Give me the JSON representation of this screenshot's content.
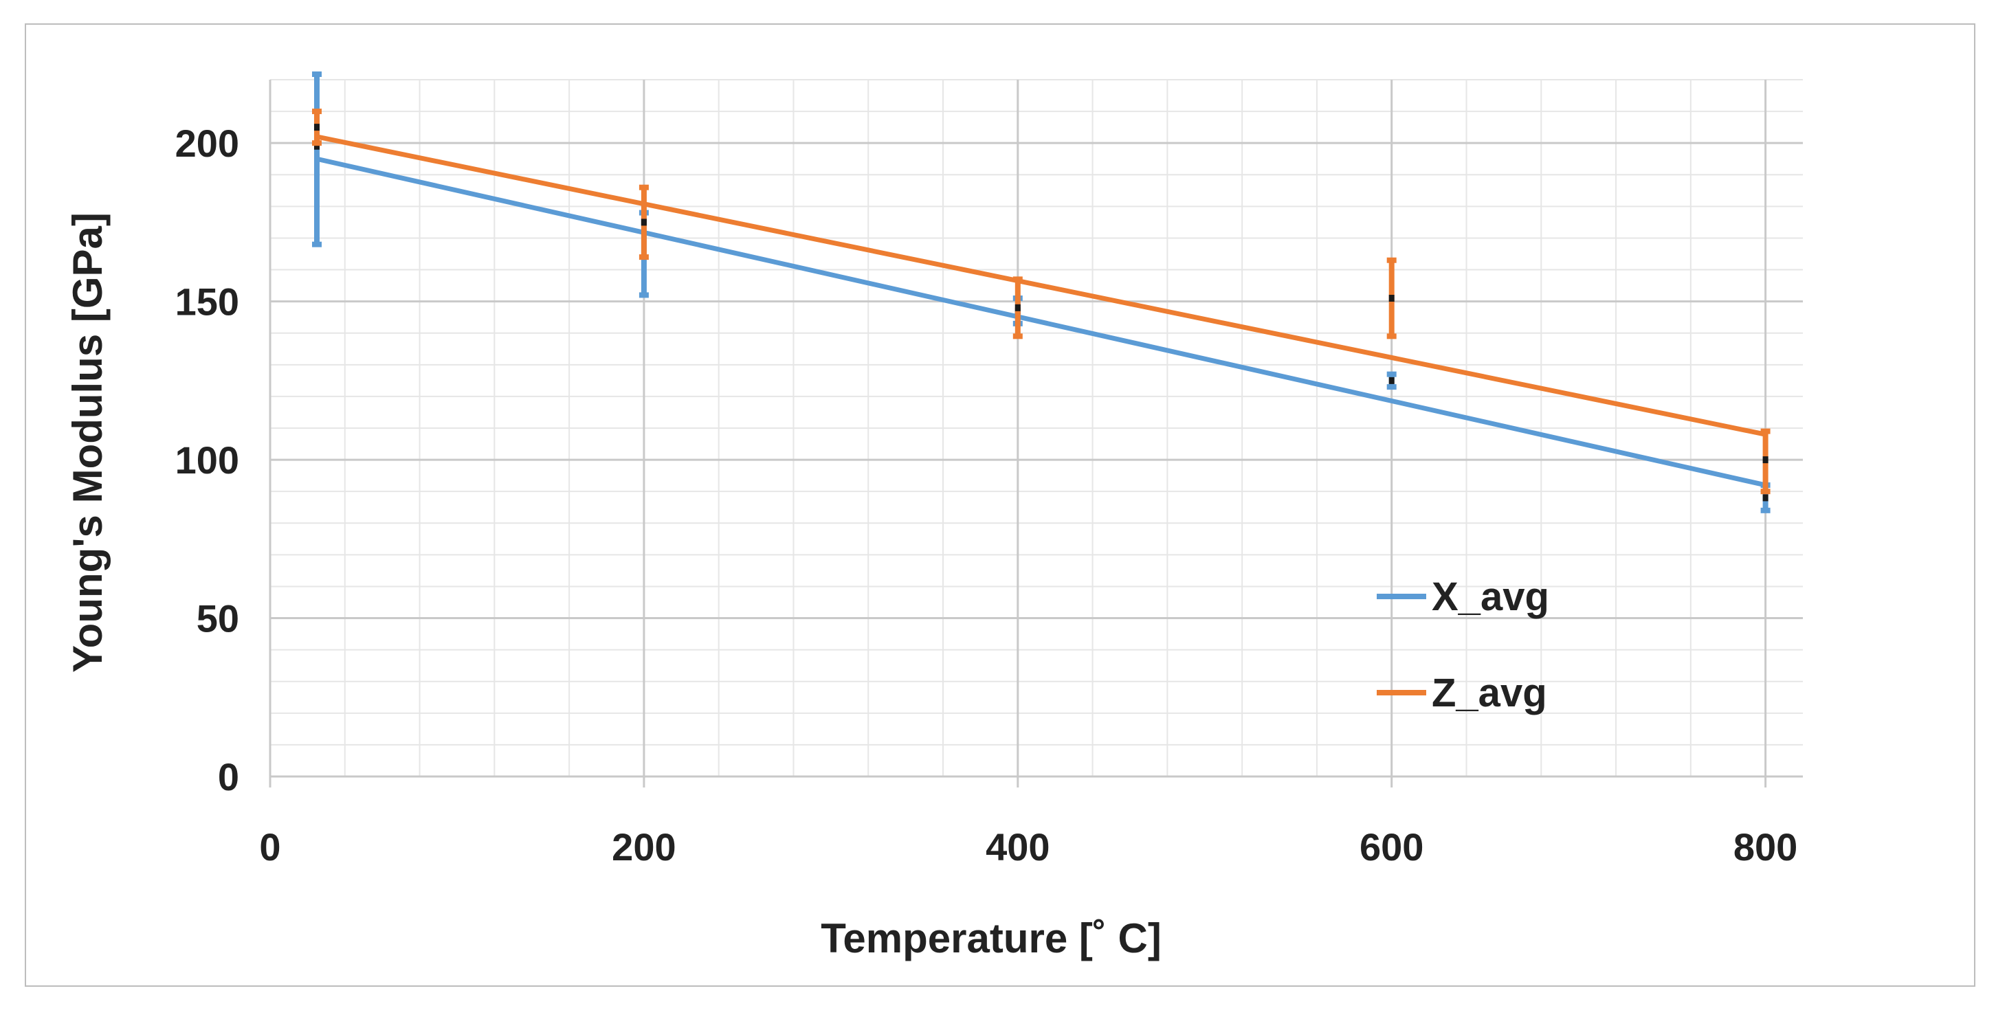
{
  "chart_data": {
    "type": "line",
    "title": "",
    "xlabel": "Temperature [˚ C]",
    "ylabel": "Young's Modulus [GPa]",
    "xlim": [
      0,
      820
    ],
    "ylim": [
      0,
      220
    ],
    "xticks": [
      0,
      200,
      400,
      600,
      800
    ],
    "yticks": [
      0,
      50,
      100,
      150,
      200
    ],
    "xtick_labels": [
      "0",
      "200",
      "400",
      "600",
      "800"
    ],
    "ytick_labels": [
      "0",
      "50",
      "100",
      "150",
      "200"
    ],
    "x_minor_step": 40,
    "y_minor_step": 10,
    "grid": true,
    "legend_position": "lower-right",
    "series": [
      {
        "name": "X_avg",
        "color": "#5b9bd5",
        "fit": [
          [
            25,
            195
          ],
          [
            800,
            92
          ]
        ],
        "points": [
          {
            "x": 25,
            "y": 199,
            "err_low": 168,
            "err_high": 222
          },
          {
            "x": 200,
            "y": 175,
            "err_low": 152,
            "err_high": 178
          },
          {
            "x": 400,
            "y": 147,
            "err_low": 143,
            "err_high": 151
          },
          {
            "x": 600,
            "y": 125,
            "err_low": 123,
            "err_high": 127
          },
          {
            "x": 800,
            "y": 88,
            "err_low": 84,
            "err_high": 92
          }
        ]
      },
      {
        "name": "Z_avg",
        "color": "#ed7d31",
        "fit": [
          [
            25,
            202
          ],
          [
            800,
            108
          ]
        ],
        "points": [
          {
            "x": 25,
            "y": 205,
            "err_low": 200,
            "err_high": 210
          },
          {
            "x": 200,
            "y": 175,
            "err_low": 164,
            "err_high": 186
          },
          {
            "x": 400,
            "y": 148,
            "err_low": 139,
            "err_high": 157
          },
          {
            "x": 600,
            "y": 151,
            "err_low": 139,
            "err_high": 163
          },
          {
            "x": 800,
            "y": 100,
            "err_low": 90,
            "err_high": 109
          }
        ]
      }
    ]
  }
}
